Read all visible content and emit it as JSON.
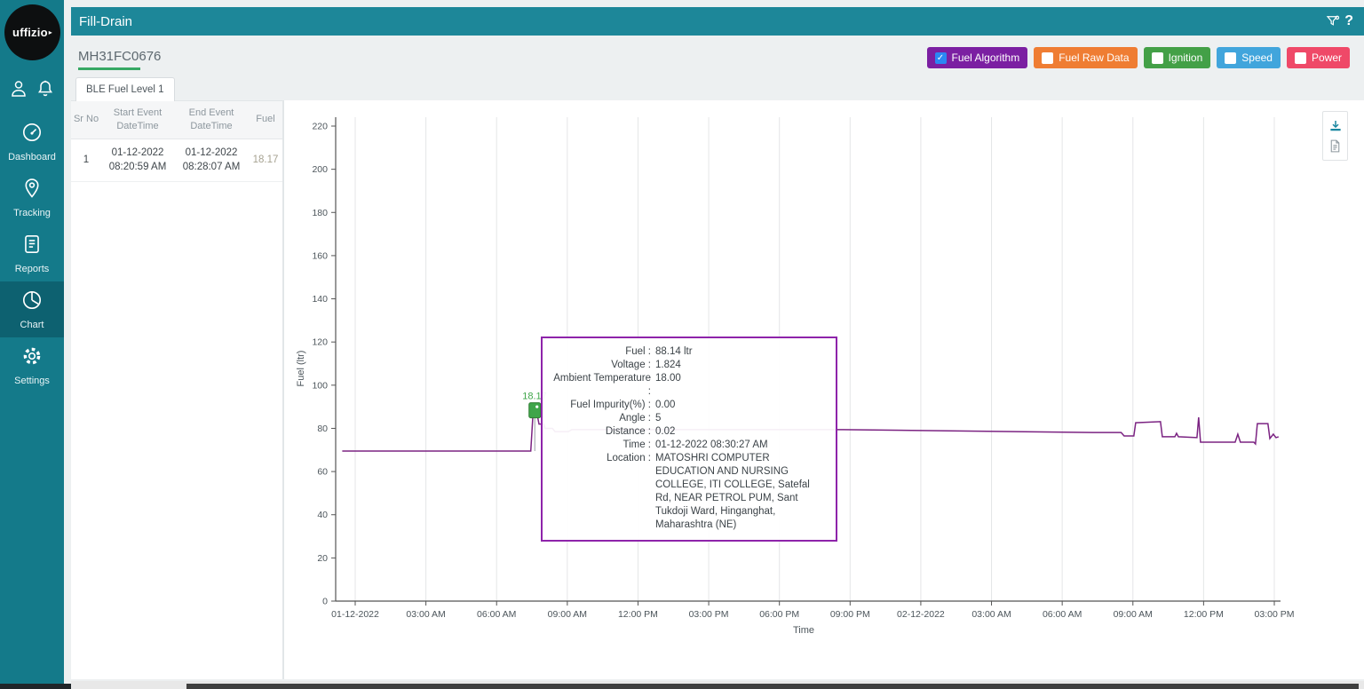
{
  "app": {
    "logo_text": "uffizio"
  },
  "header": {
    "title": "Fill-Drain",
    "help_label": "?",
    "icons": [
      "filter-icon",
      "help-icon"
    ]
  },
  "sidebar": {
    "top_icons": [
      {
        "name": "user-icon"
      },
      {
        "name": "bell-icon"
      }
    ],
    "items": [
      {
        "label": "Dashboard",
        "icon": "dashboard-icon",
        "active": false
      },
      {
        "label": "Tracking",
        "icon": "tracking-pin-icon",
        "active": false
      },
      {
        "label": "Reports",
        "icon": "reports-icon",
        "active": false
      },
      {
        "label": "Chart",
        "icon": "chart-pie-icon",
        "active": true
      },
      {
        "label": "Settings",
        "icon": "settings-gear-icon",
        "active": false
      }
    ]
  },
  "device": {
    "name": "MH31FC0676",
    "underline_color": "#37a864"
  },
  "legend": [
    {
      "label": "Fuel Algorithm",
      "color": "#7b1fa2",
      "checked": true
    },
    {
      "label": "Fuel Raw Data",
      "color": "#ef7d33",
      "checked": false
    },
    {
      "label": "Ignition",
      "color": "#43a047",
      "checked": false
    },
    {
      "label": "Speed",
      "color": "#41a5dc",
      "checked": false
    },
    {
      "label": "Power",
      "color": "#ef4968",
      "checked": false
    }
  ],
  "tab": {
    "label": "BLE Fuel Level 1"
  },
  "table": {
    "headers": [
      "Sr No",
      "Start Event DateTime",
      "End Event DateTime",
      "Fuel"
    ],
    "rows": [
      {
        "sr": "1",
        "start": "01-12-2022 08:20:59 AM",
        "end": "01-12-2022 08:28:07 AM",
        "fuel": "18.17"
      }
    ]
  },
  "chart_data": {
    "type": "line",
    "title": "",
    "xlabel": "Time",
    "ylabel": "Fuel (ltr)",
    "ylim": [
      0,
      220
    ],
    "yticks": [
      0,
      20,
      40,
      60,
      80,
      100,
      120,
      140,
      160,
      180,
      200,
      220
    ],
    "xticks": [
      "01-12-2022",
      "03:00 AM",
      "06:00 AM",
      "09:00 AM",
      "12:00 PM",
      "03:00 PM",
      "06:00 PM",
      "09:00 PM",
      "02-12-2022",
      "03:00 AM",
      "06:00 AM",
      "09:00 AM",
      "12:00 PM",
      "03:00 PM"
    ],
    "tick_interval_hours": 3,
    "grid": "vertical",
    "legend_position": "none",
    "series": [
      {
        "name": "Fuel Algorithm",
        "color": "#7b2382",
        "unit": "ltr",
        "points": [
          [
            -0.55,
            69.5
          ],
          [
            7.45,
            69.5
          ],
          [
            7.55,
            88.1
          ],
          [
            7.69,
            88.1
          ],
          [
            7.8,
            82.0
          ],
          [
            8.0,
            82.0
          ],
          [
            8.06,
            80.0
          ],
          [
            8.37,
            80.0
          ],
          [
            8.48,
            78.5
          ],
          [
            9.04,
            78.5
          ],
          [
            9.19,
            79.4
          ],
          [
            20.7,
            79.4
          ],
          [
            31.3,
            78.1
          ],
          [
            32.5,
            78.1
          ],
          [
            32.63,
            76.5
          ],
          [
            33.04,
            76.5
          ],
          [
            33.12,
            82.6
          ],
          [
            34.17,
            83.1
          ],
          [
            34.25,
            76.1
          ],
          [
            34.78,
            76.1
          ],
          [
            34.85,
            77.7
          ],
          [
            34.93,
            76.1
          ],
          [
            35.72,
            75.7
          ],
          [
            35.79,
            85.1
          ],
          [
            35.87,
            73.6
          ],
          [
            37.34,
            73.6
          ],
          [
            37.45,
            77.3
          ],
          [
            37.56,
            73.6
          ],
          [
            38.13,
            73.6
          ],
          [
            38.2,
            72.8
          ],
          [
            38.28,
            82.2
          ],
          [
            38.73,
            82.2
          ],
          [
            38.81,
            75.3
          ],
          [
            38.96,
            77.3
          ],
          [
            39.07,
            75.7
          ],
          [
            39.18,
            76.1
          ]
        ]
      }
    ],
    "event_marker": {
      "label": "18.17",
      "hours": 7.62,
      "value": 88.14,
      "color": "#3fa54a"
    }
  },
  "tooltip": {
    "border_color": "#8e24aa",
    "rows": [
      {
        "label": "Fuel",
        "value": "88.14 ltr"
      },
      {
        "label": "Voltage",
        "value": "1.824"
      },
      {
        "label": "Ambient Temperature",
        "value": "18.00"
      },
      {
        "label": "Fuel Impurity(%)",
        "value": "0.00"
      },
      {
        "label": "Angle",
        "value": "5"
      },
      {
        "label": "Distance",
        "value": "0.02"
      },
      {
        "label": "Time",
        "value": "01-12-2022 08:30:27 AM"
      },
      {
        "label": "Location",
        "value": "MATOSHRI COMPUTER EDUCATION AND NURSING COLLEGE, ITI COLLEGE, Satefal Rd, NEAR PETROL PUM, Sant Tukdoji Ward, Hinganghat, Maharashtra (NE)"
      }
    ]
  },
  "chart_export": [
    {
      "name": "download-icon"
    },
    {
      "name": "report-file-icon"
    }
  ]
}
